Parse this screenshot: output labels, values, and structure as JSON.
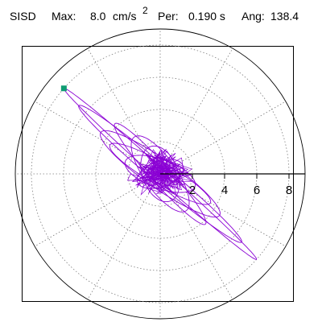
{
  "header": {
    "station": "SISD",
    "max_label": "Max:",
    "max_value": "8.0",
    "max_unit": "cm/s",
    "max_unit_exponent": "2",
    "per_label": "Per:",
    "per_value": "0.190 s",
    "ang_label": "Ang:",
    "ang_value": "138.4"
  },
  "chart_data": {
    "type": "polar-orbit",
    "title": "",
    "radial_ticks": [
      "2",
      "4",
      "6",
      "8"
    ],
    "radial_max": 9,
    "grid_rings": [
      2,
      4,
      6,
      8
    ],
    "grid_spokes_deg": [
      0,
      30,
      60,
      90,
      120,
      150,
      180,
      210,
      240,
      270,
      300,
      330
    ],
    "peak_amplitude": 8.0,
    "peak_angle_deg": 138.4,
    "peak_marker": {
      "r": 8.0,
      "theta_deg": 138.4
    },
    "colors": {
      "trace": "#8a00d4",
      "marker": "#0e9c72",
      "grid": "#7f7f7f",
      "axis": "#000000"
    },
    "orbit_series": [
      {
        "amplitude": 8.0,
        "angle_deg": 138.4,
        "minor": 0.35
      },
      {
        "amplitude": 6.6,
        "angle_deg": 140.0,
        "minor": 0.55
      },
      {
        "amplitude": 4.5,
        "angle_deg": 145.0,
        "minor": 0.9
      },
      {
        "amplitude": 4.2,
        "angle_deg": 132.0,
        "minor": 0.6
      },
      {
        "amplitude": 3.6,
        "angle_deg": 150.0,
        "minor": 0.7
      },
      {
        "amplitude": 2.8,
        "angle_deg": 125.0,
        "minor": 1.0
      },
      {
        "amplitude": 2.3,
        "angle_deg": 160.0,
        "minor": 0.9
      },
      {
        "amplitude": 1.8,
        "angle_deg": 110.0,
        "minor": 1.1
      },
      {
        "amplitude": 1.5,
        "angle_deg": 20.0,
        "minor": 0.8
      }
    ]
  }
}
